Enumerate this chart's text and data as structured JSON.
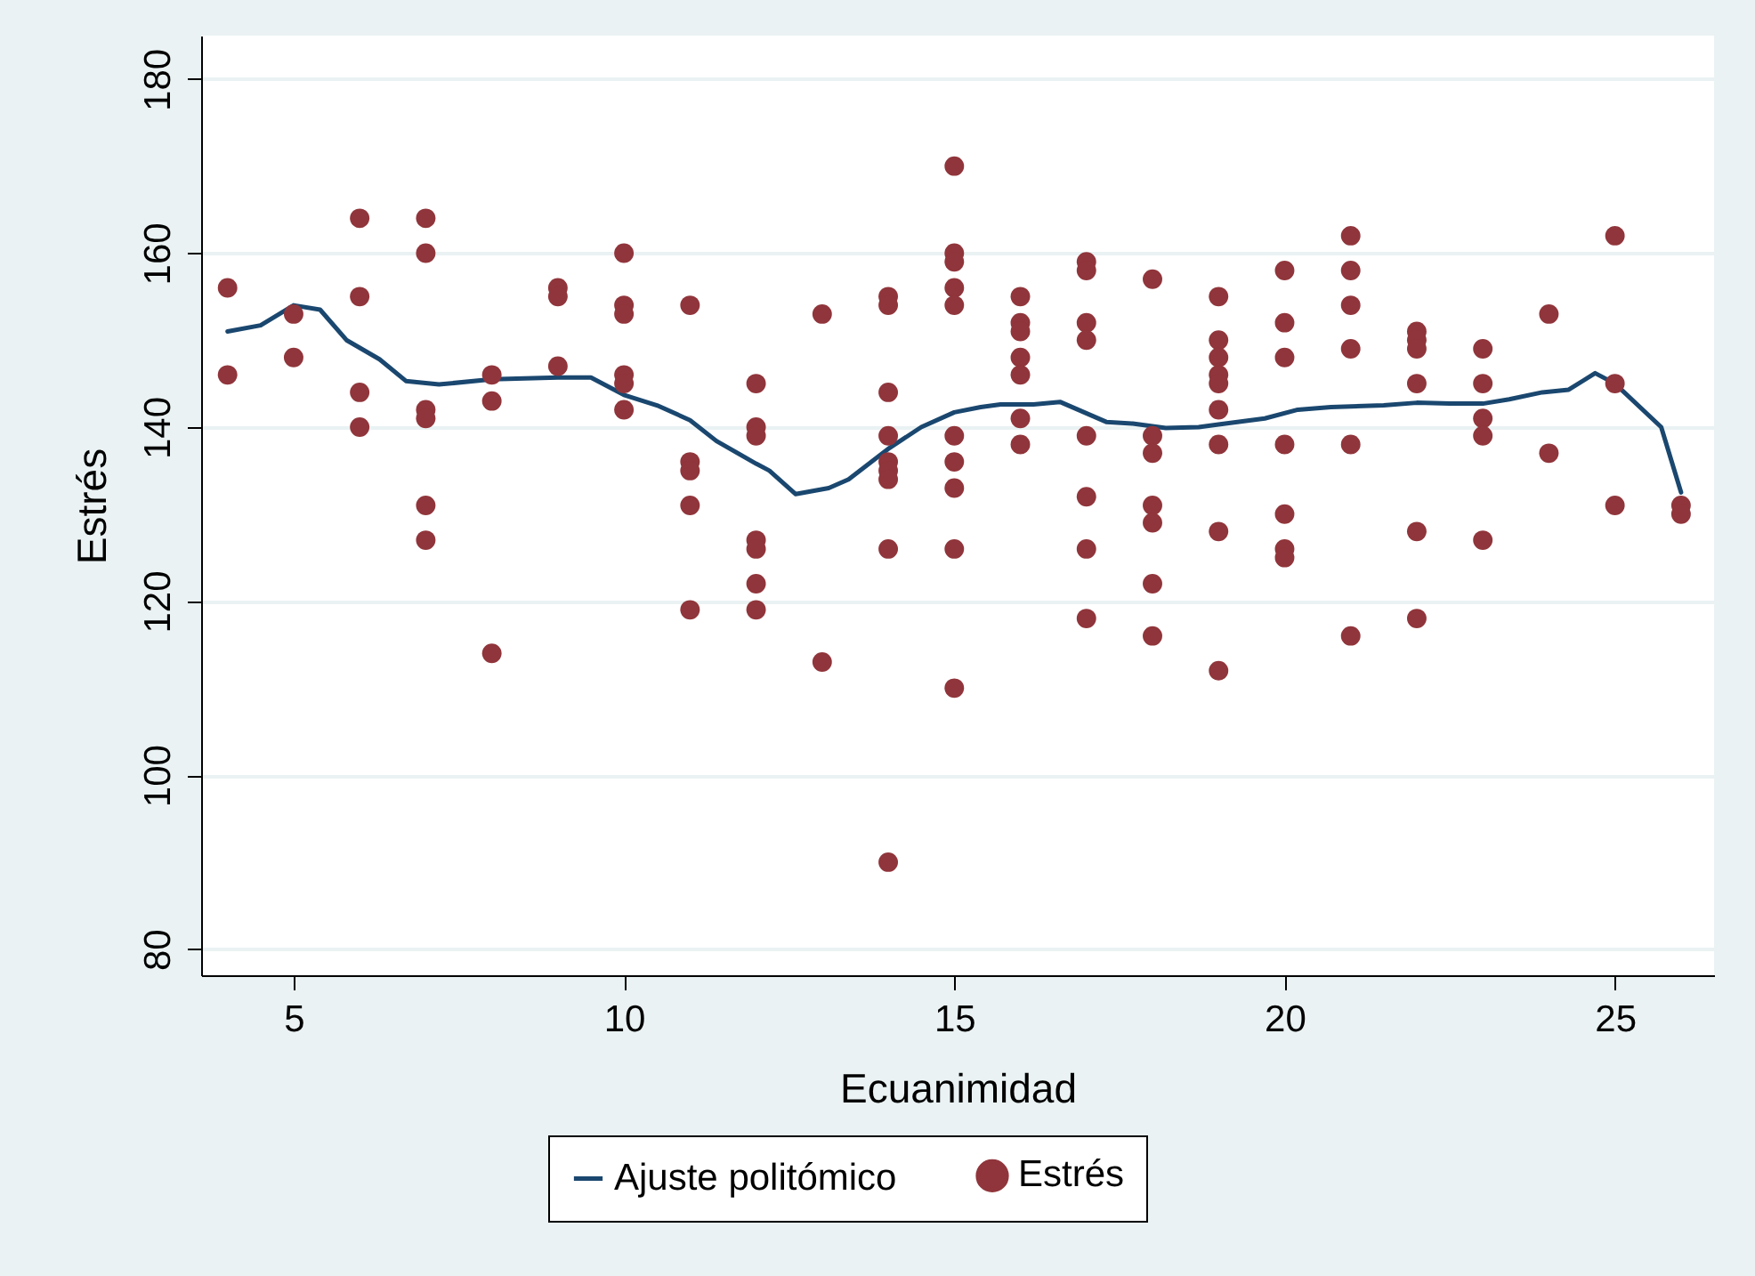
{
  "chart_data": {
    "type": "scatter",
    "xlabel": "Ecuanimidad",
    "ylabel": "Estrés",
    "xlim": [
      3.6,
      26.5
    ],
    "xticks": [
      5,
      10,
      15,
      20,
      25
    ],
    "ylim": [
      77,
      185
    ],
    "yticks": [
      80,
      100,
      120,
      140,
      160,
      180
    ],
    "grid": "y",
    "legend": "bottom",
    "series": [
      {
        "name": "Ajuste politómico",
        "type": "line",
        "color": "#1a476f",
        "line_style": "solid",
        "x": [
          4,
          4.5,
          5,
          5.4,
          5.8,
          6.3,
          6.7,
          7.2,
          8,
          9,
          9.5,
          10,
          10.5,
          11,
          11.4,
          12,
          12.2,
          12.6,
          13.1,
          13.4,
          14,
          14.5,
          15,
          15.4,
          15.7,
          16.2,
          16.6,
          17.3,
          17.7,
          18.2,
          18.7,
          19,
          19.7,
          20.2,
          20.7,
          21.5,
          22,
          22.5,
          23,
          23.4,
          23.9,
          24.3,
          24.7,
          25,
          25.7,
          26
        ],
        "values": [
          151,
          151.7,
          154,
          153.5,
          150,
          147.8,
          145.3,
          144.9,
          145.5,
          145.7,
          145.7,
          143.7,
          142.5,
          140.8,
          138.4,
          135.8,
          135,
          132.3,
          133,
          134,
          137.5,
          140,
          141.7,
          142.3,
          142.6,
          142.6,
          142.9,
          140.6,
          140.4,
          139.9,
          140,
          140.3,
          141,
          142,
          142.3,
          142.5,
          142.8,
          142.7,
          142.7,
          143.2,
          144,
          144.3,
          146.2,
          145,
          140,
          132.5
        ]
      },
      {
        "name": "Estrés",
        "type": "scatter",
        "marker": "circle",
        "color": "#90353b",
        "x": [
          4,
          4,
          5,
          5,
          6,
          6,
          6,
          6,
          7,
          7,
          7,
          7,
          7,
          7,
          8,
          8,
          8,
          9,
          9,
          9,
          10,
          10,
          10,
          10,
          10,
          10,
          11,
          11,
          11,
          11,
          11,
          12,
          12,
          12,
          12,
          12,
          12,
          12,
          13,
          13,
          14,
          14,
          14,
          14,
          14,
          14,
          14,
          14,
          14,
          15,
          15,
          15,
          15,
          15,
          15,
          15,
          15,
          15,
          15,
          16,
          16,
          16,
          16,
          16,
          16,
          16,
          17,
          17,
          17,
          17,
          17,
          17,
          17,
          17,
          18,
          18,
          18,
          18,
          18,
          18,
          18,
          19,
          19,
          19,
          19,
          19,
          19,
          19,
          19,
          19,
          20,
          20,
          20,
          20,
          20,
          20,
          20,
          21,
          21,
          21,
          21,
          21,
          21,
          22,
          22,
          22,
          22,
          22,
          22,
          23,
          23,
          23,
          23,
          23,
          24,
          24,
          25,
          25,
          25,
          26,
          26
        ],
        "values": [
          156,
          146,
          153,
          148,
          164,
          155,
          144,
          140,
          164,
          160,
          142,
          141,
          131,
          127,
          146,
          143,
          114,
          156,
          155,
          147,
          160,
          154,
          153,
          146,
          145,
          142,
          154,
          136,
          135,
          131,
          119,
          145,
          140,
          139,
          127,
          126,
          122,
          119,
          153,
          113,
          155,
          154,
          144,
          139,
          136,
          135,
          134,
          126,
          90,
          170,
          160,
          159,
          156,
          154,
          139,
          136,
          133,
          126,
          110,
          155,
          152,
          151,
          148,
          146,
          141,
          138,
          159,
          158,
          152,
          150,
          139,
          132,
          126,
          118,
          157,
          139,
          137,
          131,
          129,
          122,
          116,
          155,
          150,
          148,
          146,
          145,
          142,
          138,
          128,
          112,
          158,
          152,
          148,
          138,
          130,
          126,
          125,
          162,
          158,
          154,
          149,
          138,
          116,
          151,
          150,
          149,
          145,
          128,
          118,
          149,
          145,
          141,
          139,
          127,
          153,
          137,
          162,
          145,
          131,
          131,
          130
        ]
      }
    ]
  }
}
